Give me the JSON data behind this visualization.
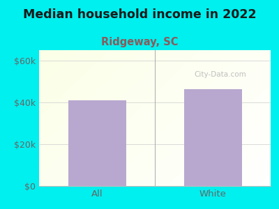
{
  "title": "Median household income in 2022",
  "subtitle": "Ridgeway, SC",
  "categories": [
    "All",
    "White"
  ],
  "values": [
    41000,
    46500
  ],
  "bar_color": "#b8a8d0",
  "background_color": "#00efef",
  "title_color": "#1a1a1a",
  "subtitle_color": "#8b5a5a",
  "tick_label_color": "#666666",
  "yticks": [
    0,
    20000,
    40000,
    60000
  ],
  "ytick_labels": [
    "$0",
    "$20k",
    "$40k",
    "$60k"
  ],
  "ylim": [
    0,
    65000
  ],
  "watermark": "City-Data.com",
  "title_fontsize": 12.5,
  "subtitle_fontsize": 10.5,
  "plot_bg_colors": [
    "#e8f5e0",
    "#f5fff5",
    "#ffffff"
  ],
  "grid_color": "#cccccc",
  "separator_color": "#aaaaaa"
}
